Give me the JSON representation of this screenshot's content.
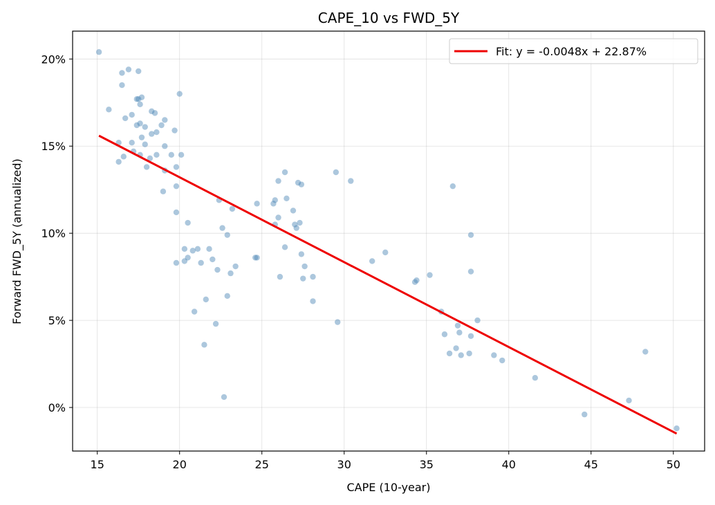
{
  "chart_data": {
    "type": "scatter",
    "title": "CAPE_10 vs FWD_5Y",
    "xlabel": "CAPE (10-year)",
    "ylabel": "Forward FWD_5Y (annualized)",
    "xlim": [
      13.5,
      51.9
    ],
    "ylim": [
      -2.5,
      21.6
    ],
    "x_ticks": [
      15,
      20,
      25,
      30,
      35,
      40,
      45,
      50
    ],
    "x_tick_labels": [
      "15",
      "20",
      "25",
      "30",
      "35",
      "40",
      "45",
      "50"
    ],
    "y_ticks": [
      0,
      5,
      10,
      15,
      20
    ],
    "y_tick_labels": [
      "0%",
      "5%",
      "10%",
      "15%",
      "20%"
    ],
    "grid": true,
    "legend_position": "top-right",
    "colors": {
      "points": "#4682b4",
      "fit_line": "#ee0000"
    },
    "series": [
      {
        "kind": "scatter",
        "points": [
          [
            15.1,
            20.4
          ],
          [
            15.7,
            17.1
          ],
          [
            16.3,
            15.2
          ],
          [
            16.3,
            14.1
          ],
          [
            16.5,
            19.2
          ],
          [
            16.5,
            18.5
          ],
          [
            16.6,
            14.4
          ],
          [
            16.7,
            16.6
          ],
          [
            16.9,
            19.4
          ],
          [
            17.1,
            16.8
          ],
          [
            17.1,
            15.2
          ],
          [
            17.2,
            14.7
          ],
          [
            17.4,
            17.7
          ],
          [
            17.4,
            16.2
          ],
          [
            17.5,
            17.7
          ],
          [
            17.5,
            19.3
          ],
          [
            17.6,
            17.4
          ],
          [
            17.6,
            16.3
          ],
          [
            17.6,
            14.5
          ],
          [
            17.7,
            15.5
          ],
          [
            17.7,
            17.8
          ],
          [
            17.9,
            16.1
          ],
          [
            17.9,
            15.1
          ],
          [
            18.0,
            13.8
          ],
          [
            18.2,
            14.3
          ],
          [
            18.3,
            17.0
          ],
          [
            18.3,
            15.7
          ],
          [
            18.5,
            16.9
          ],
          [
            18.6,
            15.8
          ],
          [
            18.6,
            14.5
          ],
          [
            18.9,
            16.2
          ],
          [
            19.0,
            12.4
          ],
          [
            19.1,
            16.5
          ],
          [
            19.1,
            15.0
          ],
          [
            19.1,
            13.6
          ],
          [
            19.5,
            14.5
          ],
          [
            19.7,
            15.9
          ],
          [
            19.8,
            13.8
          ],
          [
            19.8,
            12.7
          ],
          [
            19.8,
            11.2
          ],
          [
            19.8,
            8.3
          ],
          [
            20.0,
            18.0
          ],
          [
            20.1,
            14.5
          ],
          [
            20.3,
            9.1
          ],
          [
            20.3,
            8.4
          ],
          [
            20.5,
            8.6
          ],
          [
            20.5,
            10.6
          ],
          [
            20.8,
            9.0
          ],
          [
            20.9,
            5.5
          ],
          [
            21.1,
            9.1
          ],
          [
            21.3,
            8.3
          ],
          [
            21.5,
            3.6
          ],
          [
            21.6,
            6.2
          ],
          [
            21.8,
            9.1
          ],
          [
            22.0,
            8.5
          ],
          [
            22.2,
            4.8
          ],
          [
            22.3,
            7.9
          ],
          [
            22.4,
            11.9
          ],
          [
            22.6,
            10.3
          ],
          [
            22.7,
            0.6
          ],
          [
            22.9,
            6.4
          ],
          [
            22.9,
            9.9
          ],
          [
            23.1,
            7.7
          ],
          [
            23.2,
            11.4
          ],
          [
            23.4,
            8.1
          ],
          [
            24.6,
            8.6
          ],
          [
            24.7,
            8.6
          ],
          [
            24.7,
            11.7
          ],
          [
            25.7,
            11.7
          ],
          [
            25.8,
            11.9
          ],
          [
            25.8,
            10.5
          ],
          [
            26.0,
            10.9
          ],
          [
            26.0,
            13.0
          ],
          [
            26.1,
            7.5
          ],
          [
            26.4,
            9.2
          ],
          [
            26.4,
            13.5
          ],
          [
            26.5,
            12.0
          ],
          [
            26.9,
            11.3
          ],
          [
            27.0,
            10.5
          ],
          [
            27.1,
            10.3
          ],
          [
            27.2,
            12.9
          ],
          [
            27.3,
            10.6
          ],
          [
            27.4,
            12.8
          ],
          [
            27.4,
            8.8
          ],
          [
            27.5,
            7.4
          ],
          [
            27.6,
            8.1
          ],
          [
            28.1,
            7.5
          ],
          [
            28.1,
            6.1
          ],
          [
            29.5,
            13.5
          ],
          [
            29.6,
            4.9
          ],
          [
            30.4,
            13.0
          ],
          [
            31.7,
            8.4
          ],
          [
            32.5,
            8.9
          ],
          [
            34.3,
            7.2
          ],
          [
            34.4,
            7.3
          ],
          [
            35.2,
            7.6
          ],
          [
            35.9,
            5.5
          ],
          [
            36.1,
            4.2
          ],
          [
            36.4,
            3.1
          ],
          [
            36.6,
            12.7
          ],
          [
            36.8,
            3.4
          ],
          [
            36.9,
            4.7
          ],
          [
            37.0,
            4.3
          ],
          [
            37.1,
            3.0
          ],
          [
            37.6,
            3.1
          ],
          [
            37.7,
            9.9
          ],
          [
            37.7,
            7.8
          ],
          [
            37.7,
            4.1
          ],
          [
            38.1,
            5.0
          ],
          [
            39.1,
            3.0
          ],
          [
            39.6,
            2.7
          ],
          [
            41.6,
            1.7
          ],
          [
            44.6,
            -0.4
          ],
          [
            47.3,
            0.4
          ],
          [
            48.3,
            3.2
          ],
          [
            50.2,
            -1.2
          ]
        ]
      },
      {
        "kind": "line",
        "name": "Fit: y = -0.0048x + 22.87%",
        "points": [
          [
            15.1,
            15.6
          ],
          [
            50.2,
            -1.5
          ]
        ]
      }
    ]
  }
}
